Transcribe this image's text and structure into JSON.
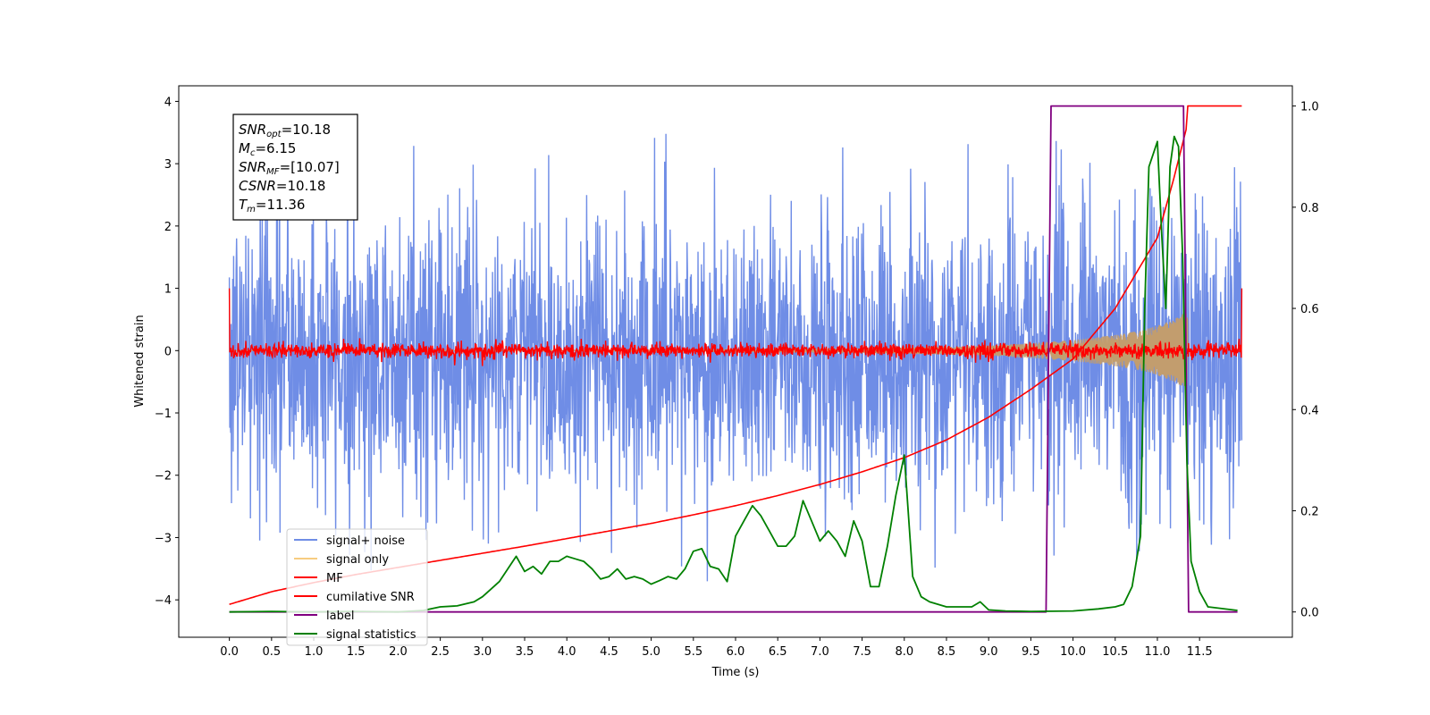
{
  "chart_data": {
    "type": "line",
    "title": "",
    "xlabel": "Time (s)",
    "ylabel": "Whitened strain",
    "xlim": [
      -0.6,
      12.6
    ],
    "ylim": [
      -4.6,
      4.25
    ],
    "y2lim": [
      -0.05,
      1.04
    ],
    "xticks": [
      0.0,
      0.5,
      1.0,
      1.5,
      2.0,
      2.5,
      3.0,
      3.5,
      4.0,
      4.5,
      5.0,
      5.5,
      6.0,
      6.5,
      7.0,
      7.5,
      8.0,
      8.5,
      9.0,
      9.5,
      10.0,
      10.5,
      11.0,
      11.5
    ],
    "xtick_labels": [
      "0.0",
      "0.5",
      "1.0",
      "1.5",
      "2.0",
      "2.5",
      "3.0",
      "3.5",
      "4.0",
      "4.5",
      "5.0",
      "5.5",
      "6.0",
      "6.5",
      "7.0",
      "7.5",
      "8.0",
      "8.5",
      "9.0",
      "9.5",
      "10.0",
      "10.5",
      "11.0",
      "11.5"
    ],
    "yticks": [
      4,
      3,
      2,
      1,
      0,
      -1,
      -2,
      -3,
      -4
    ],
    "ytick_labels": [
      "4",
      "3",
      "2",
      "1",
      "0",
      "−1",
      "−2",
      "−3",
      "−4"
    ],
    "y2ticks": [
      1.0,
      0.8,
      0.6,
      0.4,
      0.2,
      0.0
    ],
    "y2tick_labels": [
      "1.0",
      "0.8",
      "0.6",
      "0.4",
      "0.2",
      "0.0"
    ],
    "grid": false,
    "legend_position": "lower-left",
    "legend": [
      {
        "label": "signal+ noise",
        "color": "#6f8de6"
      },
      {
        "label": "signal only",
        "color": "#f7cc80"
      },
      {
        "label": "MF",
        "color": "#ff0000"
      },
      {
        "label": "cumilative SNR",
        "color": "#ff0000"
      },
      {
        "label": "label",
        "color": "#800080"
      },
      {
        "label": "signal statistics",
        "color": "#008000"
      }
    ],
    "annotation": {
      "lines": [
        {
          "var": "SNR",
          "sub": "opt",
          "value": "=10.18"
        },
        {
          "var": "M",
          "sub": "c",
          "value": "=6.15"
        },
        {
          "var": "SNR",
          "sub": "MF",
          "value": "=[10.07]"
        },
        {
          "var": "CSNR",
          "sub": "",
          "value": "=10.18"
        },
        {
          "var": "T",
          "sub": "m",
          "value": "=11.36"
        }
      ]
    },
    "series": [
      {
        "name": "signal+ noise",
        "axis": "left",
        "style": "noise",
        "x_range": [
          0.0,
          12.0
        ],
        "envelope_upper": [
          2.3,
          2.2,
          2.0,
          2.1,
          2.2,
          2.2,
          2.1,
          2.0,
          2.0,
          2.1,
          2.1,
          2.0,
          1.6,
          1.8,
          2.0,
          2.1,
          2.0,
          2.1,
          2.1,
          2.0,
          2.1,
          2.1,
          2.1,
          2.2,
          2.2
        ],
        "envelope_lower": [
          -2.3,
          -2.3,
          -2.2,
          -2.3,
          -2.3,
          -2.2,
          -2.2,
          -2.2,
          -2.2,
          -2.2,
          -2.2,
          -2.2,
          -1.9,
          -2.0,
          -2.2,
          -2.3,
          -2.3,
          -2.3,
          -2.3,
          -2.2,
          -2.3,
          -2.3,
          -2.3,
          -2.3,
          -2.3
        ],
        "peak_range": [
          -4.15,
          3.88
        ]
      },
      {
        "name": "signal only",
        "axis": "left",
        "style": "chirp",
        "envelope_x": [
          0.0,
          7.0,
          8.0,
          9.0,
          9.5,
          10.0,
          10.5,
          10.8,
          11.0,
          11.2,
          11.3
        ],
        "envelope_amp": [
          0.0,
          0.02,
          0.05,
          0.08,
          0.12,
          0.17,
          0.25,
          0.32,
          0.4,
          0.5,
          0.6
        ],
        "end_x": 11.36
      },
      {
        "name": "MF",
        "axis": "left",
        "style": "noise",
        "x_range": [
          0.0,
          12.0
        ],
        "center": 0.0,
        "amplitude": 0.12,
        "start_value": 1.0,
        "end_value": 1.0
      },
      {
        "name": "cumilative SNR",
        "axis": "right",
        "x": [
          0.0,
          0.5,
          1.0,
          1.5,
          2.0,
          2.5,
          3.0,
          3.5,
          4.0,
          4.5,
          5.0,
          5.5,
          6.0,
          6.5,
          7.0,
          7.5,
          8.0,
          8.5,
          9.0,
          9.5,
          10.0,
          10.5,
          11.0,
          11.2,
          11.35,
          11.36,
          12.0
        ],
        "y": [
          0.015,
          0.04,
          0.058,
          0.074,
          0.088,
          0.102,
          0.116,
          0.13,
          0.145,
          0.16,
          0.175,
          0.192,
          0.21,
          0.23,
          0.252,
          0.277,
          0.305,
          0.34,
          0.385,
          0.44,
          0.5,
          0.6,
          0.74,
          0.86,
          0.96,
          1.0,
          1.0
        ]
      },
      {
        "name": "label",
        "axis": "right",
        "x": [
          0.0,
          9.68,
          9.74,
          11.31,
          11.37,
          11.95
        ],
        "y": [
          0.0,
          0.0,
          1.0,
          1.0,
          0.0,
          0.0
        ]
      },
      {
        "name": "signal statistics",
        "axis": "right",
        "x": [
          0.0,
          0.5,
          1.0,
          1.5,
          2.0,
          2.3,
          2.5,
          2.7,
          2.8,
          2.9,
          3.0,
          3.1,
          3.2,
          3.3,
          3.4,
          3.5,
          3.6,
          3.7,
          3.8,
          3.9,
          4.0,
          4.1,
          4.2,
          4.3,
          4.4,
          4.5,
          4.6,
          4.7,
          4.8,
          4.9,
          5.0,
          5.1,
          5.2,
          5.3,
          5.4,
          5.5,
          5.6,
          5.7,
          5.8,
          5.9,
          6.0,
          6.1,
          6.2,
          6.3,
          6.4,
          6.5,
          6.6,
          6.7,
          6.8,
          6.9,
          7.0,
          7.1,
          7.2,
          7.3,
          7.4,
          7.5,
          7.6,
          7.7,
          7.8,
          7.9,
          8.0,
          8.1,
          8.2,
          8.3,
          8.5,
          8.7,
          8.8,
          8.9,
          9.0,
          9.2,
          9.5,
          10.0,
          10.3,
          10.5,
          10.6,
          10.7,
          10.8,
          10.85,
          10.9,
          11.0,
          11.05,
          11.1,
          11.15,
          11.2,
          11.25,
          11.3,
          11.35,
          11.4,
          11.5,
          11.6,
          11.95
        ],
        "y": [
          0.0,
          0.001,
          0.0,
          0.001,
          0.0,
          0.003,
          0.01,
          0.012,
          0.016,
          0.02,
          0.03,
          0.045,
          0.06,
          0.085,
          0.11,
          0.08,
          0.09,
          0.075,
          0.1,
          0.1,
          0.11,
          0.105,
          0.1,
          0.085,
          0.065,
          0.07,
          0.085,
          0.065,
          0.07,
          0.065,
          0.055,
          0.062,
          0.07,
          0.065,
          0.085,
          0.12,
          0.125,
          0.09,
          0.085,
          0.06,
          0.15,
          0.18,
          0.21,
          0.19,
          0.16,
          0.13,
          0.13,
          0.15,
          0.22,
          0.18,
          0.14,
          0.16,
          0.14,
          0.11,
          0.18,
          0.14,
          0.05,
          0.05,
          0.13,
          0.23,
          0.31,
          0.07,
          0.03,
          0.02,
          0.01,
          0.01,
          0.01,
          0.02,
          0.004,
          0.002,
          0.001,
          0.002,
          0.006,
          0.01,
          0.015,
          0.05,
          0.15,
          0.6,
          0.88,
          0.93,
          0.75,
          0.6,
          0.88,
          0.94,
          0.92,
          0.7,
          0.3,
          0.1,
          0.04,
          0.01,
          0.003
        ]
      }
    ]
  }
}
